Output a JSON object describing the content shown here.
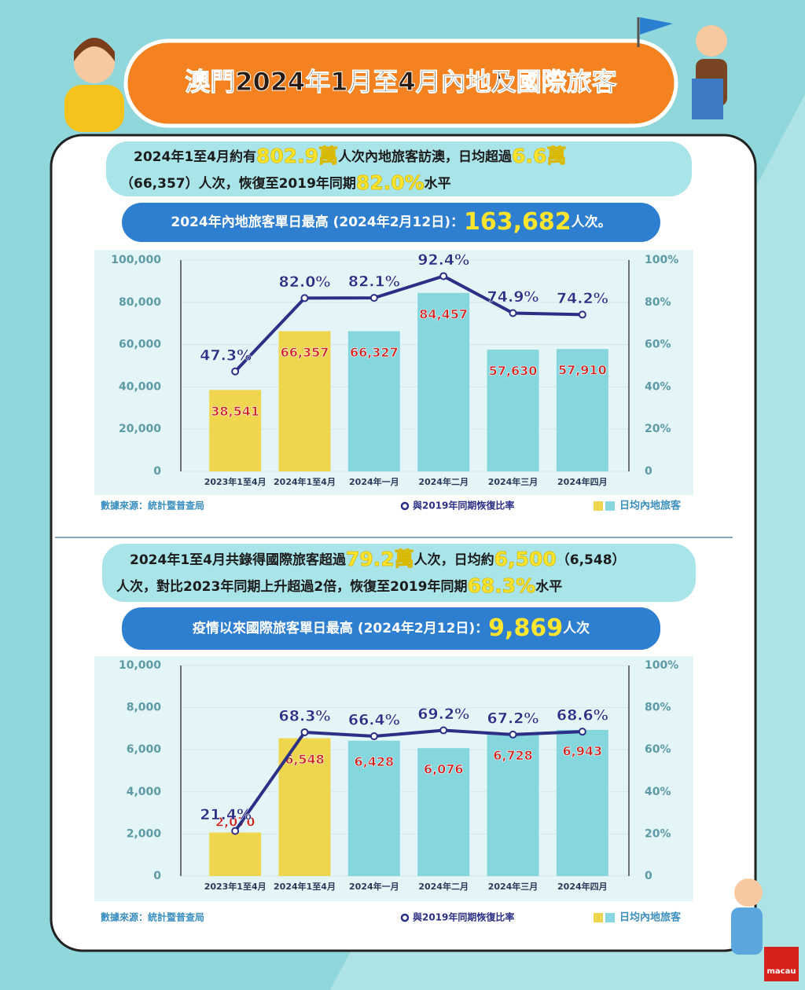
{
  "header": {
    "title": "澳門2024年1月至4月內地及國際旅客"
  },
  "sections": [
    {
      "summary": [
        [
          "2024年1至4月約有",
          "802.9萬",
          "人次內地旅客訪澳，日均超過",
          "6.6萬"
        ],
        [
          "（66,357）人次，恢復至2019年同期",
          "82.0%",
          "水平"
        ]
      ],
      "highlight": [
        "2024年內地旅客單日最高 (2024年2月12日)：",
        "163,682",
        "人次。"
      ]
    },
    {
      "summary": [
        [
          "2024年1至4月共錄得國際旅客超過",
          "79.2萬",
          "人次，日均約",
          "6,500",
          "（6,548）"
        ],
        [
          "人次，對比2023年同期上升超過2倍，恢復至2019年同期",
          "68.3%",
          "水平"
        ]
      ],
      "highlight": [
        "疫情以來國際旅客單日最高 (2024年2月12日)：",
        "9,869",
        "人次"
      ]
    }
  ],
  "chart_data": [
    {
      "type": "bar",
      "categories": [
        "2023年1至4月",
        "2024年1至4月",
        "2024年一月",
        "2024年二月",
        "2024年三月",
        "2024年四月"
      ],
      "series": [
        {
          "name": "日均內地旅客",
          "colors": [
            "#f0d64e",
            "#f0d64e",
            "#86d6de",
            "#86d6de",
            "#86d6de",
            "#86d6de"
          ],
          "values": [
            38541,
            66357,
            66327,
            84457,
            57630,
            57910
          ],
          "value_labels": [
            "38,541",
            "66,357",
            "66,327",
            "84,457",
            "57,630",
            "57,910"
          ]
        },
        {
          "name": "與2019年同期恢復比率",
          "type": "line",
          "axis": "y2",
          "color": "#2b2f86",
          "values": [
            47.3,
            82.0,
            82.1,
            92.4,
            74.9,
            74.2
          ],
          "value_labels": [
            "47.3%",
            "82.0%",
            "82.1%",
            "92.4%",
            "74.9%",
            "74.2%"
          ]
        }
      ],
      "ylim": [
        0,
        100000
      ],
      "yticks": [
        0,
        {
          "value": 20000,
          "label": "20,000"
        },
        {
          "value": 40000,
          "label": "40,000"
        },
        {
          "value": 60000,
          "label": "60,000"
        },
        {
          "value": 80000,
          "label": "80,000"
        },
        {
          "value": 100000,
          "label": "100,000"
        }
      ],
      "y2lim": [
        0,
        100
      ],
      "y2ticks": [
        0,
        {
          "value": 20,
          "label": "20%"
        },
        {
          "value": 40,
          "label": "40%"
        },
        {
          "value": 60,
          "label": "60%"
        },
        {
          "value": 80,
          "label": "80%"
        },
        {
          "value": 100,
          "label": "100%"
        }
      ],
      "grid": true,
      "source": "數據來源：統計暨普查局"
    },
    {
      "type": "bar",
      "categories": [
        "2023年1至4月",
        "2024年1至4月",
        "2024年一月",
        "2024年二月",
        "2024年三月",
        "2024年四月"
      ],
      "series": [
        {
          "name": "日均內地旅客",
          "colors": [
            "#f0d64e",
            "#f0d64e",
            "#86d6de",
            "#86d6de",
            "#86d6de",
            "#86d6de"
          ],
          "values": [
            2070,
            6548,
            6428,
            6076,
            6728,
            6943
          ],
          "value_labels": [
            "2,070",
            "6,548",
            "6,428",
            "6,076",
            "6,728",
            "6,943"
          ]
        },
        {
          "name": "與2019年同期恢復比率",
          "type": "line",
          "axis": "y2",
          "color": "#2b2f86",
          "values": [
            21.4,
            68.3,
            66.4,
            69.2,
            67.2,
            68.6
          ],
          "value_labels": [
            "21.4%",
            "68.3%",
            "66.4%",
            "69.2%",
            "67.2%",
            "68.6%"
          ]
        }
      ],
      "ylim": [
        0,
        10000
      ],
      "yticks": [
        0,
        {
          "value": 2000,
          "label": "2,000"
        },
        {
          "value": 4000,
          "label": "4,000"
        },
        {
          "value": 6000,
          "label": "6,000"
        },
        {
          "value": 8000,
          "label": "8,000"
        },
        {
          "value": 10000,
          "label": "10,000"
        }
      ],
      "y2lim": [
        0,
        100
      ],
      "y2ticks": [
        0,
        {
          "value": 20,
          "label": "20%"
        },
        {
          "value": 40,
          "label": "40%"
        },
        {
          "value": 60,
          "label": "60%"
        },
        {
          "value": 80,
          "label": "80%"
        },
        {
          "value": 100,
          "label": "100%"
        }
      ],
      "grid": true,
      "source": "數據來源：統計暨普查局"
    }
  ],
  "logo": "macau"
}
